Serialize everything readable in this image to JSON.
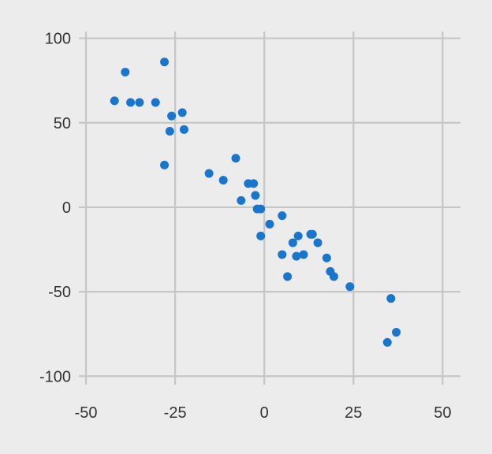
{
  "colors": {
    "background": "#ececec",
    "grid": "#c6c6c6",
    "point": "#1a75cc",
    "text": "#333333"
  },
  "chart_data": {
    "type": "scatter",
    "title": "",
    "xlabel": "",
    "ylabel": "",
    "xlim": [
      -52,
      55
    ],
    "ylim": [
      -105,
      104
    ],
    "grid": true,
    "x_ticks": [
      -50,
      -25,
      0,
      25,
      50
    ],
    "x_tick_labels": [
      "-50",
      "-25",
      "0",
      "25",
      "50"
    ],
    "y_ticks": [
      100,
      50,
      0,
      -50,
      -100
    ],
    "y_tick_labels": [
      "100",
      "50",
      "0",
      "-50",
      "-100"
    ],
    "points": [
      {
        "x": -28,
        "y": 86
      },
      {
        "x": -39,
        "y": 80
      },
      {
        "x": -42,
        "y": 63
      },
      {
        "x": -37.5,
        "y": 62
      },
      {
        "x": -35,
        "y": 62
      },
      {
        "x": -30.5,
        "y": 62
      },
      {
        "x": -26,
        "y": 54
      },
      {
        "x": -23,
        "y": 56
      },
      {
        "x": -26.5,
        "y": 45
      },
      {
        "x": -22.5,
        "y": 46
      },
      {
        "x": -28,
        "y": 25
      },
      {
        "x": -15.5,
        "y": 20
      },
      {
        "x": -11.5,
        "y": 16
      },
      {
        "x": -8,
        "y": 29
      },
      {
        "x": -4.5,
        "y": 14
      },
      {
        "x": -3,
        "y": 14
      },
      {
        "x": -2.5,
        "y": 7
      },
      {
        "x": -6.5,
        "y": 4
      },
      {
        "x": -2,
        "y": -1
      },
      {
        "x": -1,
        "y": -1
      },
      {
        "x": 1.5,
        "y": -10
      },
      {
        "x": 5,
        "y": -5
      },
      {
        "x": -1,
        "y": -17
      },
      {
        "x": 9.5,
        "y": -17
      },
      {
        "x": 13,
        "y": -16
      },
      {
        "x": 13.5,
        "y": -16
      },
      {
        "x": 8,
        "y": -21
      },
      {
        "x": 15,
        "y": -21
      },
      {
        "x": 5,
        "y": -28
      },
      {
        "x": 9,
        "y": -29
      },
      {
        "x": 11,
        "y": -28
      },
      {
        "x": 17.5,
        "y": -30
      },
      {
        "x": 6.5,
        "y": -41
      },
      {
        "x": 18.5,
        "y": -38
      },
      {
        "x": 19.5,
        "y": -41
      },
      {
        "x": 24,
        "y": -47
      },
      {
        "x": 35.5,
        "y": -54
      },
      {
        "x": 37,
        "y": -74
      },
      {
        "x": 34.5,
        "y": -80
      }
    ]
  }
}
